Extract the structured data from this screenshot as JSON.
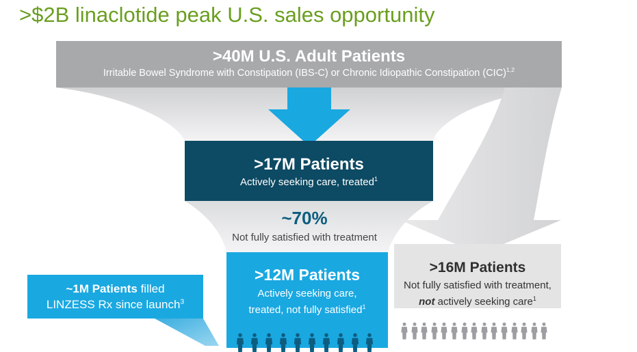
{
  "title": ">$2B linaclotide peak U.S. sales opportunity",
  "top": {
    "headline": ">40M U.S. Adult Patients",
    "subtitle": "Irritable Bowel Syndrome with Constipation (IBS-C) or Chronic Idiopathic Constipation (CIC)",
    "ref": "1,2"
  },
  "treated": {
    "headline": ">17M Patients",
    "subtitle": "Actively seeking care, treated",
    "ref": "1"
  },
  "dissatisfied": {
    "percent": "~70%",
    "label": "Not fully satisfied with treatment"
  },
  "treated_unsatisfied": {
    "headline": ">12M Patients",
    "line1": "Actively seeking care,",
    "line2": "treated, not fully satisfied",
    "ref": "1"
  },
  "untreated": {
    "headline": ">16M Patients",
    "line1": "Not fully satisfied with treatment,",
    "line2_emph": "not",
    "line2_rest": " actively seeking care",
    "ref": "1"
  },
  "linzess": {
    "bold": "~1M Patients",
    "rest": " filled",
    "line2": "LINZESS Rx since launch",
    "ref": "3"
  },
  "colors": {
    "title_green": "#6a9e1f",
    "gray_box": "#a7a9ab",
    "navy_box": "#0d4a63",
    "cyan_box": "#1aa8e1",
    "light_gray_box": "#e4e4e4"
  }
}
